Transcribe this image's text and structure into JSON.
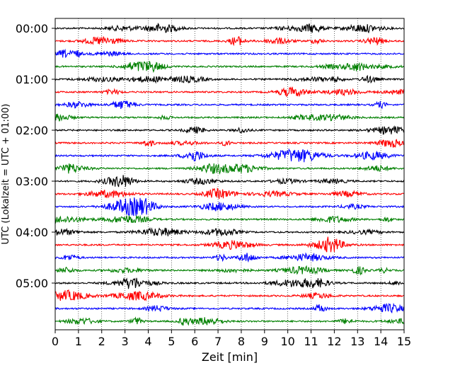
{
  "chart_data": {
    "type": "line",
    "title": "",
    "xlabel": "Zeit  [min]",
    "ylabel": "UTC (Lokalzeit = UTC + 01:00)",
    "xlim": [
      0,
      15
    ],
    "x_ticks": [
      "0",
      "1",
      "2",
      "3",
      "4",
      "5",
      "6",
      "7",
      "8",
      "9",
      "10",
      "11",
      "12",
      "13",
      "14",
      "15"
    ],
    "y_tick_labels": [
      "00:00",
      "01:00",
      "02:00",
      "03:00",
      "04:00",
      "05:00"
    ],
    "trace_interval_min": 15,
    "grid": "vertical-dotted",
    "colors_cycle": [
      "#000000",
      "#ff0000",
      "#0000ff",
      "#008000"
    ],
    "traces": [
      {
        "time": "00:00",
        "color": "#000000"
      },
      {
        "time": "00:15",
        "color": "#ff0000"
      },
      {
        "time": "00:30",
        "color": "#0000ff"
      },
      {
        "time": "00:45",
        "color": "#008000"
      },
      {
        "time": "01:00",
        "color": "#000000"
      },
      {
        "time": "01:15",
        "color": "#ff0000"
      },
      {
        "time": "01:30",
        "color": "#0000ff"
      },
      {
        "time": "01:45",
        "color": "#008000"
      },
      {
        "time": "02:00",
        "color": "#000000"
      },
      {
        "time": "02:15",
        "color": "#ff0000"
      },
      {
        "time": "02:30",
        "color": "#0000ff"
      },
      {
        "time": "02:45",
        "color": "#008000"
      },
      {
        "time": "03:00",
        "color": "#000000"
      },
      {
        "time": "03:15",
        "color": "#ff0000"
      },
      {
        "time": "03:30",
        "color": "#0000ff"
      },
      {
        "time": "03:45",
        "color": "#008000"
      },
      {
        "time": "04:00",
        "color": "#000000"
      },
      {
        "time": "04:15",
        "color": "#ff0000"
      },
      {
        "time": "04:30",
        "color": "#0000ff"
      },
      {
        "time": "04:45",
        "color": "#008000"
      },
      {
        "time": "05:00",
        "color": "#000000"
      },
      {
        "time": "05:15",
        "color": "#ff0000"
      },
      {
        "time": "05:30",
        "color": "#0000ff"
      },
      {
        "time": "05:45",
        "color": "#008000"
      }
    ]
  }
}
